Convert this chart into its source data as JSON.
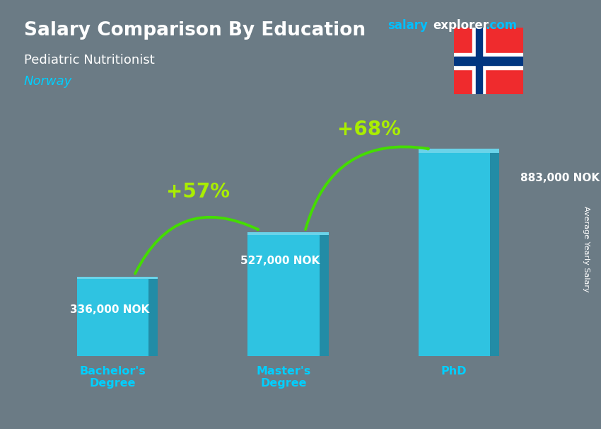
{
  "title": "Salary Comparison By Education",
  "subtitle": "Pediatric Nutritionist",
  "country": "Norway",
  "categories": [
    "Bachelor's\nDegree",
    "Master's\nDegree",
    "PhD"
  ],
  "values": [
    336000,
    527000,
    883000
  ],
  "value_labels": [
    "336,000 NOK",
    "527,000 NOK",
    "883,000 NOK"
  ],
  "pct_labels": [
    "+57%",
    "+68%"
  ],
  "bar_color": "#29CCEC",
  "bar_dark_color": "#1A8FAA",
  "bar_light_color": "#6ADDF5",
  "title_color": "#FFFFFF",
  "subtitle_color": "#FFFFFF",
  "country_color": "#00CFFF",
  "value_label_color": "#FFFFFF",
  "pct_color": "#AAEE00",
  "arrow_color": "#44DD00",
  "xtick_color": "#00CFFF",
  "brand_salary_color": "#00BFFF",
  "brand_explorer_color": "#FFFFFF",
  "brand_dot_com_color": "#00BFFF",
  "background_color": "#6B7B85",
  "ylim": [
    0,
    1100000
  ],
  "bar_positions": [
    0,
    1,
    2
  ],
  "bar_width": 0.42,
  "figsize": [
    8.5,
    6.06
  ],
  "dpi": 100
}
